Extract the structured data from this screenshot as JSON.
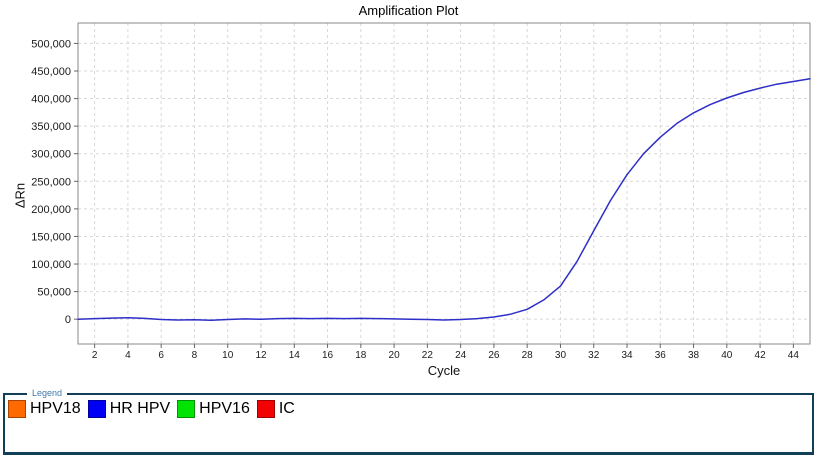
{
  "title": "Amplification Plot",
  "axes": {
    "y_label": "ΔRn",
    "x_label": "Cycle"
  },
  "legend": {
    "box_label": "Legend",
    "items": [
      {
        "label": "HPV18",
        "color": "#FF6A00"
      },
      {
        "label": "HR HPV",
        "color": "#0000F5"
      },
      {
        "label": "HPV16",
        "color": "#00E303"
      },
      {
        "label": "IC",
        "color": "#F20202"
      }
    ]
  },
  "colors": {
    "curve": "#2E2EC8",
    "grid": "#D8D8D8",
    "plot_border": "#8A8A8A",
    "tick": "#666666",
    "tick_text": "#1A1A1A",
    "legend_border": "#123F58",
    "legend_caption": "#4278A8"
  },
  "chart_data": {
    "type": "line",
    "title": "Amplification Plot",
    "xlabel": "Cycle",
    "ylabel": "ΔRn",
    "xlim": [
      1,
      45
    ],
    "ylim": [
      -45000,
      537000
    ],
    "grid": true,
    "legend_position": "bottom",
    "x_ticks": [
      2,
      4,
      6,
      8,
      10,
      12,
      14,
      16,
      18,
      20,
      22,
      24,
      26,
      28,
      30,
      32,
      34,
      36,
      38,
      40,
      42,
      44
    ],
    "y_ticks": [
      0,
      50000,
      100000,
      150000,
      200000,
      250000,
      300000,
      350000,
      400000,
      450000,
      500000
    ],
    "y_tick_labels": [
      "0",
      "50,000",
      "100,000",
      "150,000",
      "200,000",
      "250,000",
      "300,000",
      "350,000",
      "400,000",
      "450,000",
      "500,000"
    ],
    "series": [
      {
        "name": "HR HPV",
        "color": "#2E2EC8",
        "x": [
          1,
          2,
          3,
          4,
          5,
          6,
          7,
          8,
          9,
          10,
          11,
          12,
          13,
          14,
          15,
          16,
          17,
          18,
          19,
          20,
          21,
          22,
          23,
          24,
          25,
          26,
          27,
          28,
          29,
          30,
          31,
          32,
          33,
          34,
          35,
          36,
          37,
          38,
          39,
          40,
          41,
          42,
          43,
          44,
          45
        ],
        "y": [
          0,
          1000,
          2000,
          2500,
          1500,
          -500,
          -1500,
          -1000,
          -2000,
          -500,
          500,
          0,
          1000,
          1500,
          1000,
          1500,
          1000,
          1500,
          1000,
          500,
          0,
          -500,
          -1500,
          -500,
          1000,
          4000,
          9000,
          18000,
          35000,
          60000,
          105000,
          160000,
          215000,
          262000,
          300000,
          330000,
          355000,
          374000,
          389000,
          401000,
          411000,
          419000,
          426000,
          431000,
          436000
        ]
      }
    ]
  }
}
